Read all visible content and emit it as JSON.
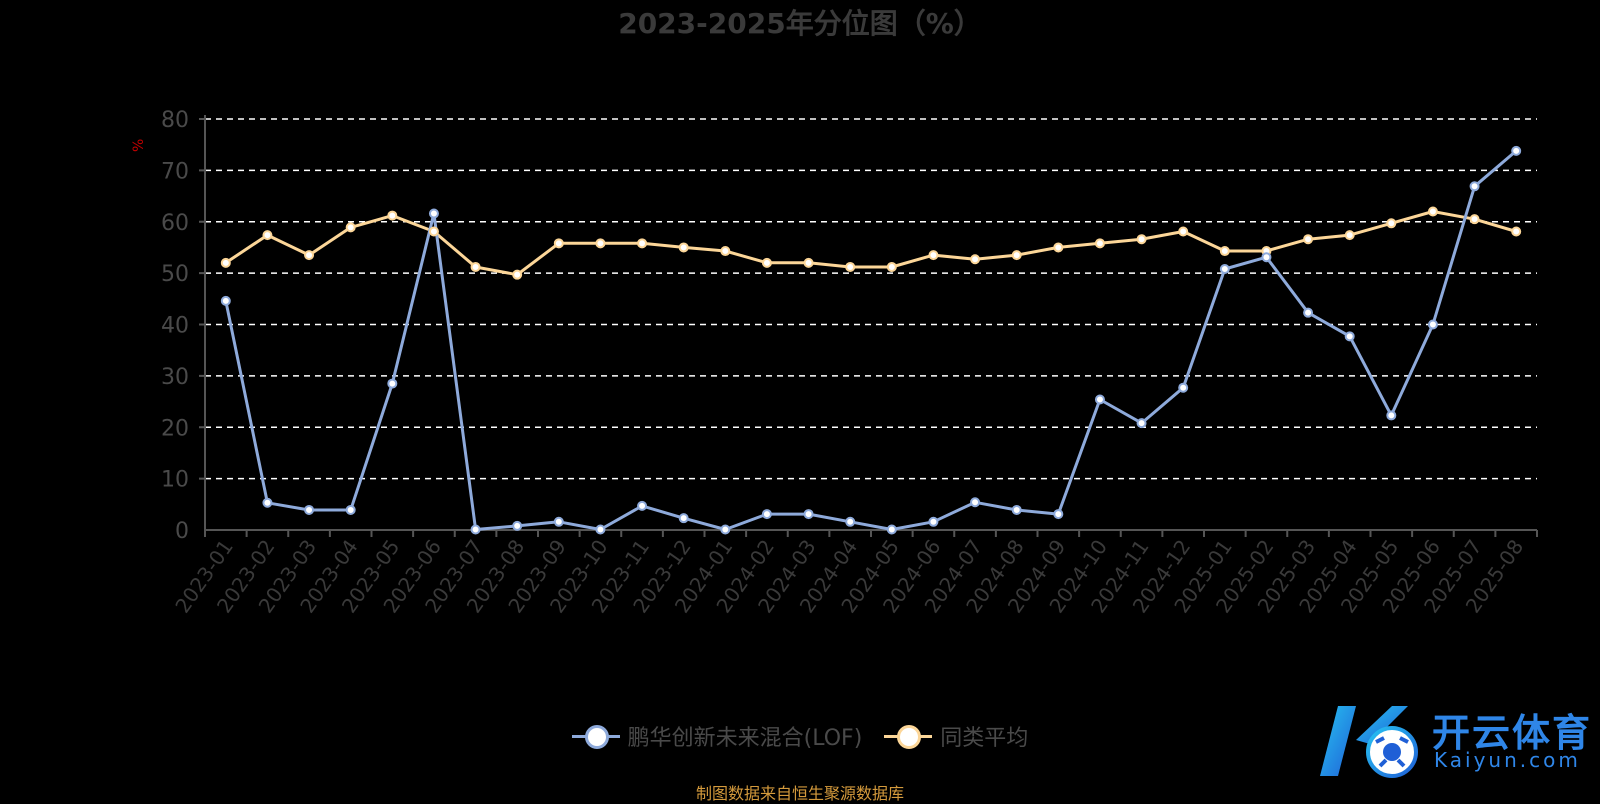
{
  "source_note": "制图数据来自恒生聚源数据库",
  "watermark": {
    "brand": "开云体育",
    "url": "Kaiyun.com"
  },
  "colors": {
    "fund": "#8eaadb",
    "average": "#fcd698",
    "grid": "#ffffff",
    "axis": "#555555",
    "unit": "#c00000"
  },
  "chart_data": {
    "type": "line",
    "title": "2023-2025年分位图（%）",
    "ylabel": "%",
    "ylim": [
      0,
      80
    ],
    "yticks": [
      "0",
      "10",
      "20",
      "30",
      "40",
      "50",
      "60",
      "70",
      "80"
    ],
    "grid": true,
    "legend_position": "bottom",
    "categories": [
      "2023-01",
      "2023-02",
      "2023-03",
      "2023-04",
      "2023-05",
      "2023-06",
      "2023-07",
      "2023-08",
      "2023-09",
      "2023-10",
      "2023-11",
      "2023-12",
      "2024-01",
      "2024-02",
      "2024-03",
      "2024-04",
      "2024-05",
      "2024-06",
      "2024-07",
      "2024-08",
      "2024-09",
      "2024-10",
      "2024-11",
      "2024-12",
      "2025-01",
      "2025-02",
      "2025-03",
      "2025-04",
      "2025-05",
      "2025-06",
      "2025-07",
      "2025-08"
    ],
    "series": [
      {
        "name": "鹏华创新未来混合(LOF)",
        "values": [
          44.6,
          5.3,
          3.9,
          3.9,
          28.5,
          61.6,
          0.1,
          0.8,
          1.6,
          0.1,
          4.7,
          2.3,
          0.1,
          3.1,
          3.1,
          1.6,
          0.1,
          1.6,
          5.4,
          3.9,
          3.1,
          25.4,
          20.8,
          27.7,
          50.8,
          53.1,
          42.3,
          37.7,
          22.3,
          40.0,
          66.9,
          73.8
        ]
      },
      {
        "name": "同类平均",
        "values": [
          52.0,
          57.4,
          53.5,
          58.9,
          61.2,
          58.1,
          51.2,
          49.7,
          55.8,
          55.8,
          55.8,
          55.0,
          54.3,
          52.0,
          52.0,
          51.2,
          51.2,
          53.5,
          52.7,
          53.5,
          55.0,
          55.8,
          56.6,
          58.1,
          54.3,
          54.3,
          56.6,
          57.4,
          59.7,
          62.0,
          60.5,
          58.1
        ]
      }
    ]
  }
}
